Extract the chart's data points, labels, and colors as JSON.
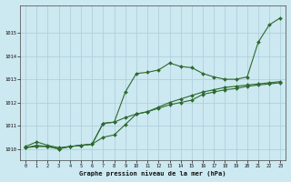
{
  "title": "Graphe pression niveau de la mer (hPa)",
  "background_color": "#cce8f0",
  "grid_color": "#aaccda",
  "line_color": "#2d6a2d",
  "xlim": [
    -0.5,
    23.5
  ],
  "ylim": [
    1009.5,
    1016.2
  ],
  "yticks": [
    1010,
    1011,
    1012,
    1013,
    1014,
    1015
  ],
  "xticks": [
    0,
    1,
    2,
    3,
    4,
    5,
    6,
    7,
    8,
    9,
    10,
    11,
    12,
    13,
    14,
    15,
    16,
    17,
    18,
    19,
    20,
    21,
    22,
    23
  ],
  "series": [
    {
      "x": [
        0,
        1,
        2,
        3,
        4,
        5,
        6,
        7,
        8,
        9,
        10,
        11,
        12,
        13,
        14,
        15,
        16,
        17,
        18,
        19,
        20,
        21,
        22,
        23
      ],
      "y": [
        1010.1,
        1010.3,
        1010.15,
        1010.05,
        1010.1,
        1010.15,
        1010.2,
        1011.1,
        1011.15,
        1012.45,
        1013.25,
        1013.3,
        1013.4,
        1013.7,
        1013.55,
        1013.5,
        1013.25,
        1013.1,
        1013.0,
        1013.0,
        1013.1,
        1014.6,
        1015.35,
        1015.65
      ]
    },
    {
      "x": [
        0,
        1,
        2,
        3,
        4,
        5,
        6,
        7,
        8,
        9,
        10,
        11,
        12,
        13,
        14,
        15,
        16,
        17,
        18,
        19,
        20,
        21,
        22,
        23
      ],
      "y": [
        1010.05,
        1010.1,
        1010.1,
        1010.0,
        1010.1,
        1010.15,
        1010.2,
        1010.5,
        1010.6,
        1011.05,
        1011.5,
        1011.6,
        1011.8,
        1012.0,
        1012.15,
        1012.3,
        1012.45,
        1012.55,
        1012.65,
        1012.7,
        1012.75,
        1012.8,
        1012.85,
        1012.9
      ]
    },
    {
      "x": [
        0,
        1,
        2,
        3,
        4,
        5,
        6,
        7,
        8,
        9,
        10,
        11,
        12,
        13,
        14,
        15,
        16,
        17,
        18,
        19,
        20,
        21,
        22,
        23
      ],
      "y": [
        1010.05,
        1010.15,
        1010.1,
        1010.0,
        1010.1,
        1010.15,
        1010.2,
        1011.1,
        1011.15,
        1011.35,
        1011.5,
        1011.6,
        1011.75,
        1011.9,
        1012.0,
        1012.1,
        1012.35,
        1012.45,
        1012.55,
        1012.6,
        1012.7,
        1012.75,
        1012.8,
        1012.85
      ]
    }
  ]
}
